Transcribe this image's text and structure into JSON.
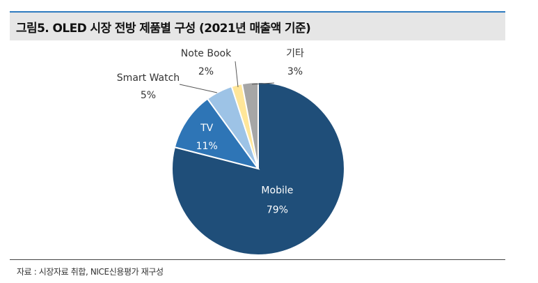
{
  "title": "그림5. OLED 시장 전방 제품별 구성 (2021년 매출액 기준)",
  "source": "자료 : 시장자료 취합, NICE신용평가 재구성",
  "colors": {
    "accent_rule": "#2e7bbf",
    "title_bg": "#e6e6e6"
  },
  "chart_data": {
    "type": "pie",
    "title": "그림5. OLED 시장 전방 제품별 구성 (2021년 매출액 기준)",
    "legend": "none",
    "slices": [
      {
        "name": "Mobile",
        "value": 79,
        "label": "79%",
        "color": "#1f4e79"
      },
      {
        "name": "TV",
        "value": 11,
        "label": "11%",
        "color": "#2e75b6"
      },
      {
        "name": "Smart Watch",
        "value": 5,
        "label": "5%",
        "color": "#9dc3e6"
      },
      {
        "name": "Note Book",
        "value": 2,
        "label": "2%",
        "color": "#ffe699"
      },
      {
        "name": "기타",
        "value": 3,
        "label": "3%",
        "color": "#a6a6a6"
      }
    ]
  }
}
